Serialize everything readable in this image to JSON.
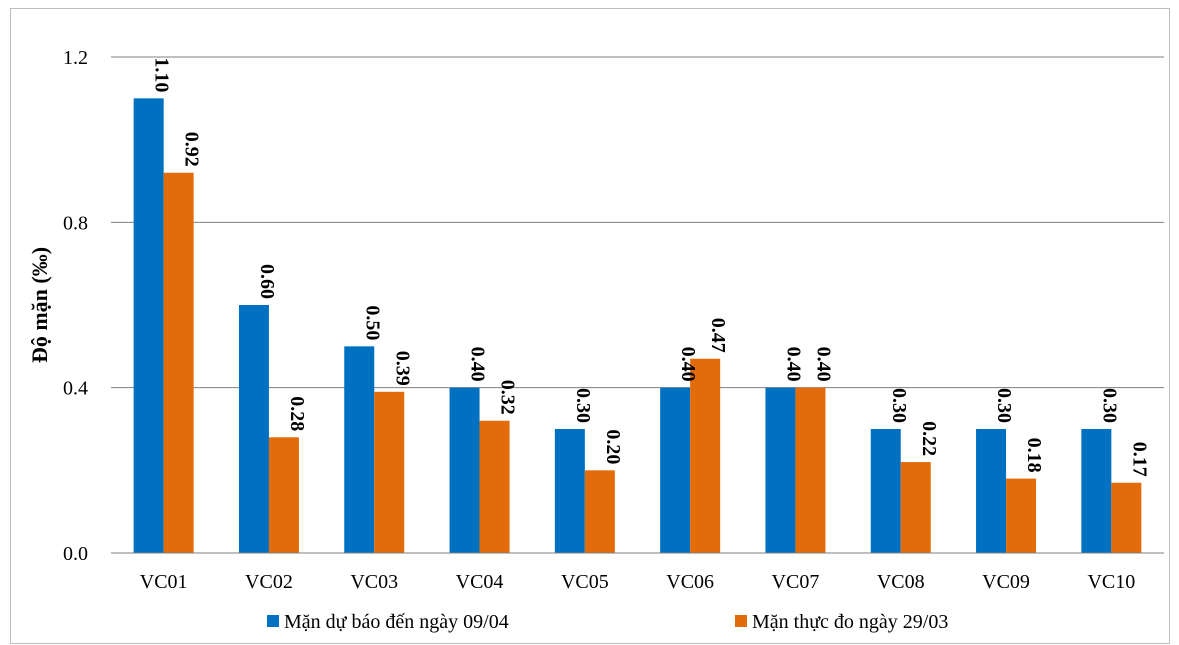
{
  "chart_data": {
    "type": "bar",
    "categories": [
      "VC01",
      "VC02",
      "VC03",
      "VC04",
      "VC05",
      "VC06",
      "VC07",
      "VC08",
      "VC09",
      "VC10"
    ],
    "series": [
      {
        "name": "Mặn dự báo đến ngày 09/04",
        "color": "#0070c0",
        "values": [
          1.1,
          0.6,
          0.5,
          0.4,
          0.3,
          0.4,
          0.4,
          0.3,
          0.3,
          0.3
        ]
      },
      {
        "name": "Mặn thực đo ngày 29/03",
        "color": "#e36c0a",
        "values": [
          0.92,
          0.28,
          0.39,
          0.32,
          0.2,
          0.47,
          0.4,
          0.22,
          0.18,
          0.17
        ]
      }
    ],
    "ylabel": "Độ mặn (‰)",
    "xlabel": "",
    "ylim": [
      0,
      1.2
    ],
    "yticks": [
      "0.0",
      "0.4",
      "0.8",
      "1.2"
    ],
    "grid": true,
    "legend_position": "bottom",
    "data_label_decimals": 2
  }
}
